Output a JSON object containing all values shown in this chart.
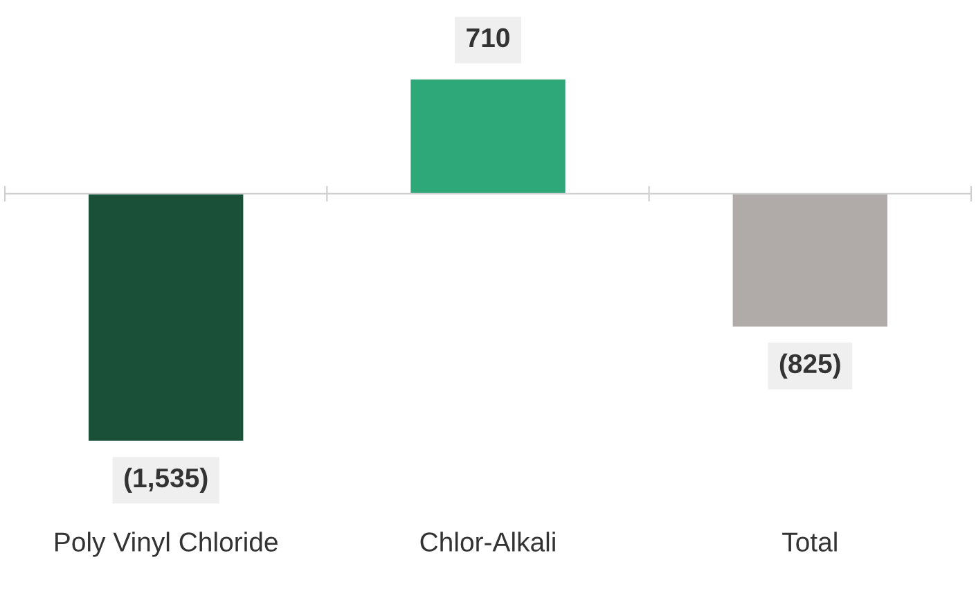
{
  "chart_data": {
    "type": "bar",
    "categories": [
      "Poly Vinyl Chloride",
      "Chlor-Alkali",
      "Total"
    ],
    "values": [
      -1535,
      710,
      -825
    ],
    "colors": [
      "#1a5038",
      "#2ea878",
      "#b0aba8"
    ],
    "value_labels": [
      "(1,535)",
      "710",
      "(825)"
    ],
    "grid": false
  }
}
